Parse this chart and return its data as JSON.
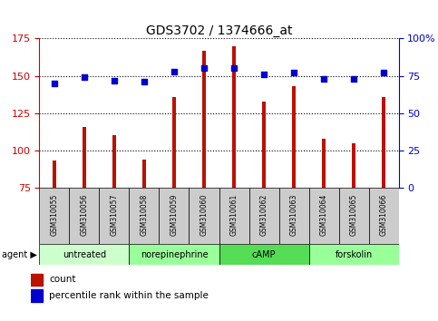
{
  "title": "GDS3702 / 1374666_at",
  "samples": [
    "GSM310055",
    "GSM310056",
    "GSM310057",
    "GSM310058",
    "GSM310059",
    "GSM310060",
    "GSM310061",
    "GSM310062",
    "GSM310063",
    "GSM310064",
    "GSM310065",
    "GSM310066"
  ],
  "counts": [
    93,
    116,
    110,
    94,
    136,
    167,
    170,
    133,
    143,
    108,
    105,
    136
  ],
  "percentiles": [
    70,
    74,
    72,
    71,
    78,
    80,
    80,
    76,
    77,
    73,
    73,
    77
  ],
  "ylim_left": [
    75,
    175
  ],
  "ylim_right": [
    0,
    100
  ],
  "yticks_left": [
    75,
    100,
    125,
    150,
    175
  ],
  "yticks_right": [
    0,
    25,
    50,
    75,
    100
  ],
  "yticklabels_right": [
    "0",
    "25",
    "50",
    "75",
    "100%"
  ],
  "groups": [
    {
      "label": "untreated",
      "start": 0,
      "end": 3,
      "color": "#ccffcc"
    },
    {
      "label": "norepinephrine",
      "start": 3,
      "end": 6,
      "color": "#99ff99"
    },
    {
      "label": "cAMP",
      "start": 6,
      "end": 9,
      "color": "#55dd55"
    },
    {
      "label": "forskolin",
      "start": 9,
      "end": 12,
      "color": "#99ff99"
    }
  ],
  "bar_color": "#bb1100",
  "dot_color": "#0000cc",
  "left_axis_color": "#cc0000",
  "right_axis_color": "#0000cc",
  "grid_color": "#000000",
  "sample_box_color": "#cccccc",
  "legend_count_color": "#bb1100",
  "legend_dot_color": "#0000cc",
  "bar_width": 0.12,
  "dot_size": 18
}
